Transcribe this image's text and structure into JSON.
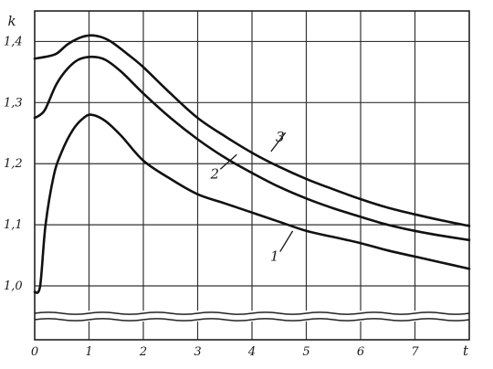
{
  "chart_data": {
    "type": "line",
    "xlabel": "t",
    "ylabel": "k",
    "x_ticks": [
      "0",
      "1",
      "2",
      "3",
      "4",
      "5",
      "6",
      "7"
    ],
    "y_ticks": [
      "1,0",
      "1,1",
      "1,2",
      "1,3",
      "1,4"
    ],
    "x_tick_values": [
      0,
      1,
      2,
      3,
      4,
      5,
      6,
      7
    ],
    "y_tick_values": [
      1.0,
      1.1,
      1.2,
      1.3,
      1.4
    ],
    "xlim": [
      0,
      8
    ],
    "ylim": [
      1.0,
      1.45
    ],
    "grid": true,
    "axis_break": true,
    "series": [
      {
        "name": "1",
        "x": [
          0,
          0.1,
          0.2,
          0.35,
          0.5,
          0.7,
          0.9,
          1.05,
          1.3,
          1.6,
          2.0,
          2.5,
          3.0,
          3.5,
          4.0,
          4.5,
          5.0,
          5.5,
          6.0,
          6.5,
          7.0,
          7.5,
          8.0
        ],
        "values": [
          0.99,
          1.0,
          1.1,
          1.18,
          1.22,
          1.255,
          1.275,
          1.28,
          1.27,
          1.245,
          1.205,
          1.175,
          1.15,
          1.135,
          1.12,
          1.105,
          1.09,
          1.08,
          1.07,
          1.058,
          1.048,
          1.038,
          1.028
        ]
      },
      {
        "name": "2",
        "x": [
          0,
          0.1,
          0.2,
          0.4,
          0.6,
          0.8,
          1.05,
          1.3,
          1.6,
          2.0,
          2.5,
          3.0,
          3.5,
          4.0,
          4.5,
          5.0,
          5.5,
          6.0,
          6.5,
          7.0,
          7.5,
          8.0
        ],
        "values": [
          1.275,
          1.28,
          1.29,
          1.33,
          1.355,
          1.37,
          1.375,
          1.37,
          1.35,
          1.315,
          1.275,
          1.24,
          1.21,
          1.185,
          1.162,
          1.143,
          1.127,
          1.113,
          1.1,
          1.09,
          1.082,
          1.075
        ]
      },
      {
        "name": "3",
        "x": [
          0,
          0.2,
          0.4,
          0.6,
          0.8,
          1.0,
          1.2,
          1.4,
          1.7,
          2.0,
          2.5,
          3.0,
          3.5,
          4.0,
          4.5,
          5.0,
          5.5,
          6.0,
          6.5,
          7.0,
          7.5,
          8.0
        ],
        "values": [
          1.372,
          1.375,
          1.38,
          1.395,
          1.405,
          1.41,
          1.408,
          1.4,
          1.38,
          1.358,
          1.315,
          1.275,
          1.245,
          1.218,
          1.195,
          1.175,
          1.158,
          1.142,
          1.128,
          1.117,
          1.107,
          1.098
        ]
      }
    ]
  }
}
